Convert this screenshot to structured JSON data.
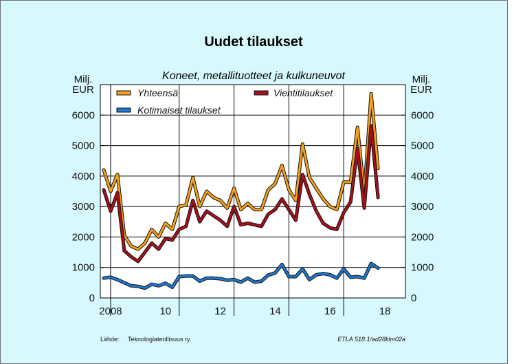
{
  "chart_data": {
    "type": "line",
    "title": "Uudet tilaukset",
    "subtitle": "Koneet, metallituotteet ja kulkuneuvot",
    "y_unit_left": [
      "Milj.",
      "EUR"
    ],
    "y_unit_right": [
      "Milj.",
      "EUR"
    ],
    "ylim": [
      0,
      7000
    ],
    "yticks": [
      0,
      1000,
      2000,
      3000,
      4000,
      5000,
      6000
    ],
    "xlim": [
      2007.625,
      2018.75
    ],
    "xticks": [
      {
        "value": 2008,
        "label": "2008"
      },
      {
        "value": 2010,
        "label": "10"
      },
      {
        "value": 2012,
        "label": "12"
      },
      {
        "value": 2014,
        "label": "14"
      },
      {
        "value": 2016,
        "label": "16"
      },
      {
        "value": 2018,
        "label": "18"
      }
    ],
    "year_lines": [
      2008,
      2010.5,
      2012.5,
      2014.5,
      2016.5
    ],
    "grid": true,
    "legend_placement": "top-left",
    "x": [
      2007.75,
      2008.0,
      2008.25,
      2008.5,
      2008.75,
      2009.0,
      2009.25,
      2009.5,
      2009.75,
      2010.0,
      2010.25,
      2010.5,
      2010.75,
      2011.0,
      2011.25,
      2011.5,
      2011.75,
      2012.0,
      2012.25,
      2012.5,
      2012.75,
      2013.0,
      2013.25,
      2013.5,
      2013.75,
      2014.0,
      2014.25,
      2014.5,
      2014.75,
      2015.0,
      2015.25,
      2015.5,
      2015.75,
      2016.0,
      2016.25,
      2016.5,
      2016.75,
      2017.0,
      2017.25,
      2017.5,
      2017.75
    ],
    "series": [
      {
        "name": "Yhteensä",
        "color": "#f5a21a",
        "values": [
          4200,
          3500,
          4050,
          2050,
          1700,
          1600,
          1800,
          2250,
          2000,
          2450,
          2250,
          3000,
          3050,
          3950,
          3000,
          3500,
          3300,
          3200,
          2950,
          3600,
          2900,
          3100,
          2900,
          2900,
          3550,
          3750,
          4350,
          3550,
          3200,
          5050,
          3950,
          3600,
          3250,
          3000,
          2900,
          3800,
          3800,
          5600,
          3400,
          6700,
          4250
        ]
      },
      {
        "name": "Vientitilaukset",
        "color": "#a8101a",
        "values": [
          3550,
          2850,
          3450,
          1550,
          1350,
          1200,
          1500,
          1800,
          1600,
          1950,
          1900,
          2250,
          2350,
          3200,
          2500,
          2850,
          2700,
          2550,
          2350,
          3000,
          2400,
          2450,
          2400,
          2350,
          2750,
          2900,
          3250,
          2900,
          2550,
          4050,
          3400,
          2850,
          2450,
          2300,
          2250,
          2800,
          3150,
          4900,
          2950,
          5650,
          3300
        ]
      },
      {
        "name": "Kotimaiset tilaukset",
        "color": "#1f78d2",
        "values": [
          650,
          680,
          600,
          500,
          400,
          380,
          320,
          450,
          400,
          480,
          350,
          700,
          720,
          720,
          550,
          650,
          650,
          630,
          580,
          600,
          520,
          650,
          520,
          550,
          750,
          820,
          1100,
          700,
          700,
          950,
          600,
          760,
          800,
          760,
          650,
          950,
          680,
          700,
          650,
          1130,
          980
        ]
      }
    ]
  },
  "source": {
    "label": "Lähde:",
    "text": "Teknologiateollisuus ry.",
    "code": "ETLA 518.1/ad28klm02a"
  }
}
